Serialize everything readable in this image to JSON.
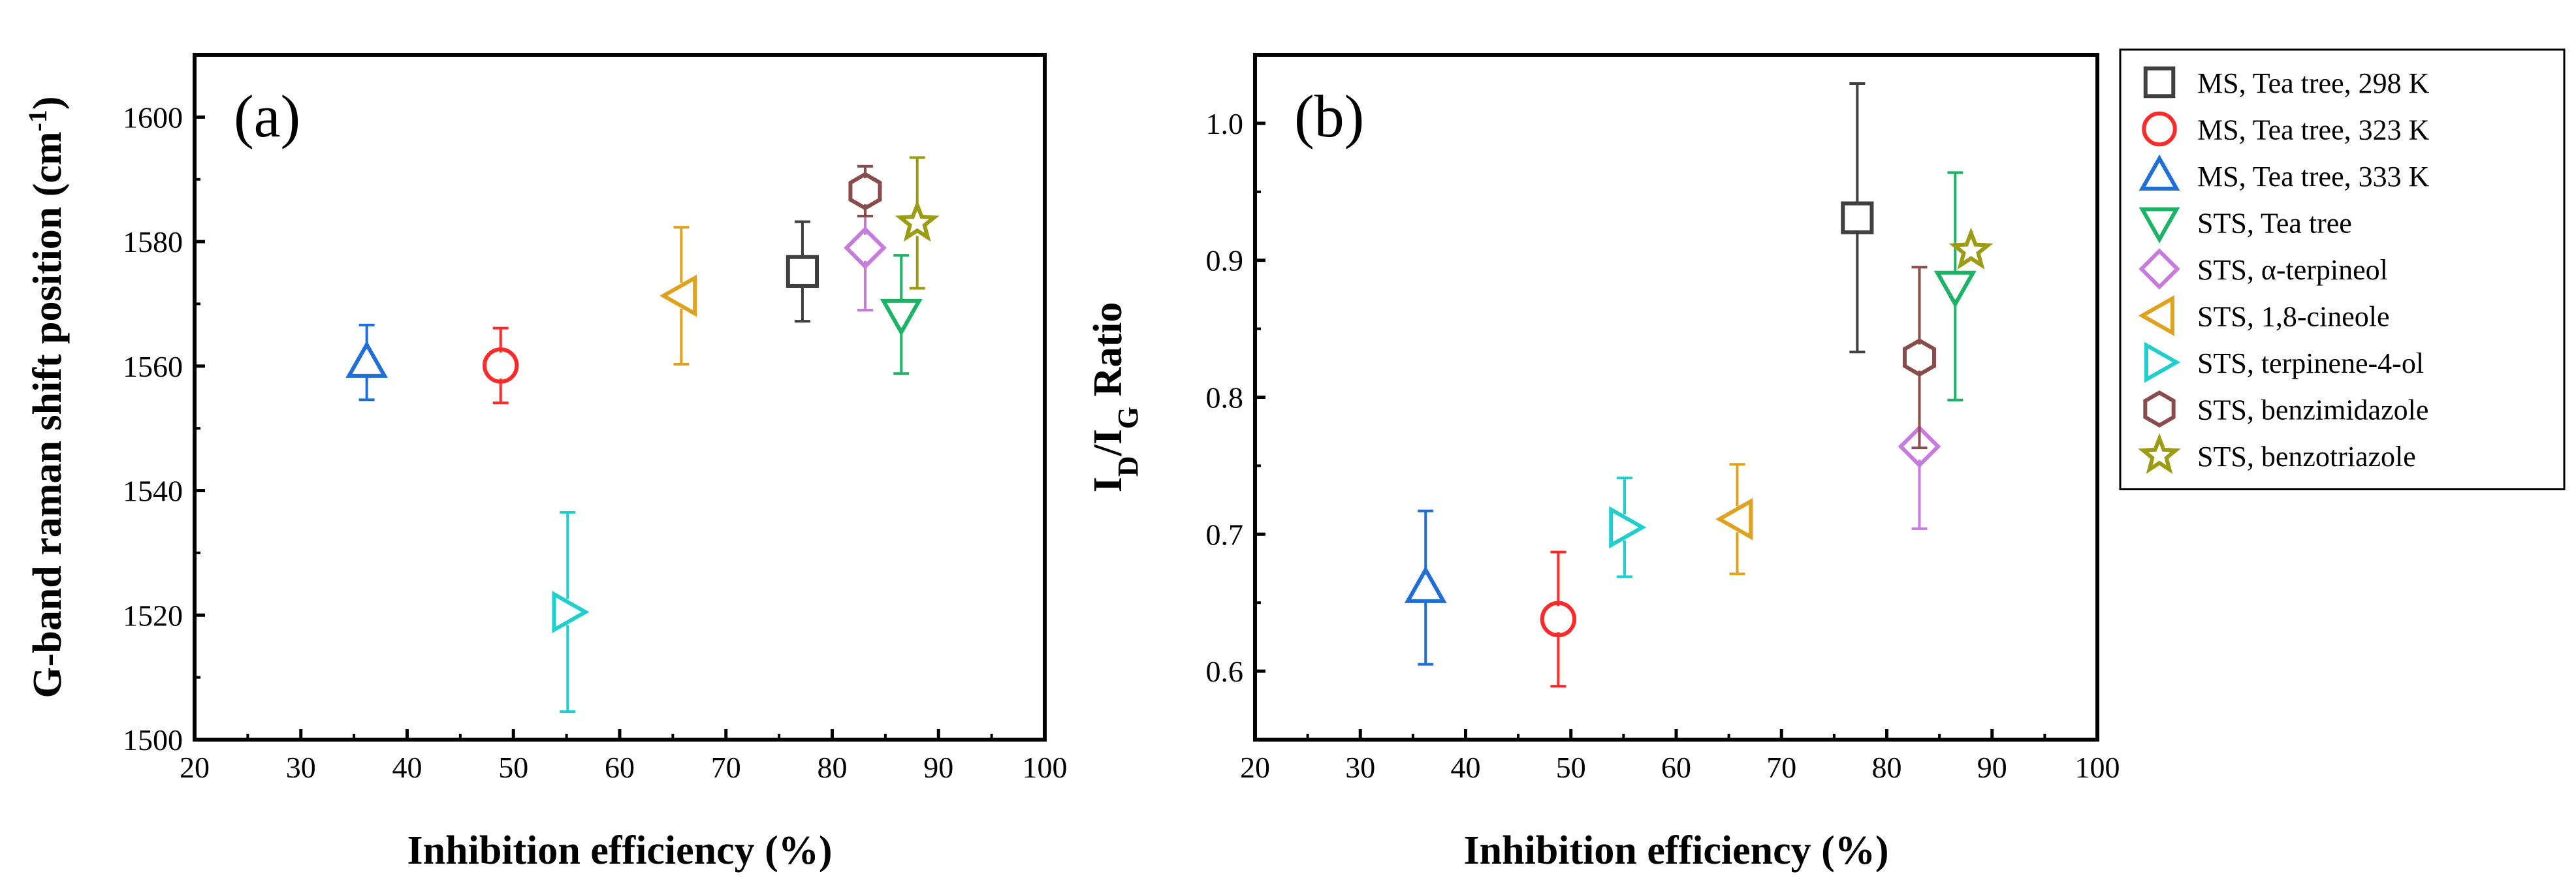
{
  "colors": {
    "MS, Tea tree, 298 K": "#3f3f3f",
    "MS, Tea tree, 323 K": "#ff2a2a",
    "MS, Tea tree, 333 K": "#1f6fd6",
    "STS, Tea tree": "#1bb366",
    "STS, α-terpineol": "#c77bdd",
    "STS, 1,8-cineole": "#e0a21c",
    "STS, terpinene-4-ol": "#1fcfcf",
    "STS, benzimidazole": "#8a4b4b",
    "STS, benzotriazole": "#9c9c12"
  },
  "markers": {
    "MS, Tea tree, 298 K": "square",
    "MS, Tea tree, 323 K": "circle",
    "MS, Tea tree, 333 K": "triangle-up",
    "STS, Tea tree": "triangle-down",
    "STS, α-terpineol": "diamond",
    "STS, 1,8-cineole": "triangle-left",
    "STS, terpinene-4-ol": "triangle-right",
    "STS, benzimidazole": "hexagon",
    "STS, benzotriazole": "star"
  },
  "legend": {
    "placement": "right",
    "entries": [
      "MS, Tea tree, 298 K",
      "MS, Tea tree, 323 K",
      "MS, Tea tree, 333 K",
      "STS, Tea tree",
      "STS, α-terpineol",
      "STS, 1,8-cineole",
      "STS, terpinene-4-ol",
      "STS, benzimidazole",
      "STS, benzotriazole"
    ]
  },
  "chart_data": [
    {
      "type": "scatter",
      "panel": "(a)",
      "xlabel": "Inhibition efficiency (%)",
      "ylabel": "G-band raman shift position (cm",
      "ylabel_sup": "-1",
      "ylabel_end": ")",
      "xlim": [
        20,
        100
      ],
      "ylim": [
        1500,
        1610
      ],
      "xticks": [
        20,
        30,
        40,
        50,
        60,
        70,
        80,
        90,
        100
      ],
      "yticks": [
        1500,
        1520,
        1540,
        1560,
        1580,
        1600
      ],
      "grid": false,
      "series": [
        {
          "name": "MS, Tea tree, 298 K",
          "x": 77.2,
          "y": 1575.2,
          "err": 8
        },
        {
          "name": "MS, Tea tree, 323 K",
          "x": 48.8,
          "y": 1560.1,
          "err": 6
        },
        {
          "name": "MS, Tea tree, 333 K",
          "x": 36.2,
          "y": 1560.6,
          "err": 6
        },
        {
          "name": "STS, Tea tree",
          "x": 86.5,
          "y": 1568.3,
          "err": 9.5
        },
        {
          "name": "STS, α-terpineol",
          "x": 83.1,
          "y": 1579.0,
          "err": 10
        },
        {
          "name": "STS, 1,8-cineole",
          "x": 65.8,
          "y": 1571.3,
          "err": 11
        },
        {
          "name": "STS, terpinene-4-ol",
          "x": 55.1,
          "y": 1520.5,
          "err": 16
        },
        {
          "name": "STS, benzimidazole",
          "x": 83.1,
          "y": 1588.1,
          "err": 4
        },
        {
          "name": "STS, benzotriazole",
          "x": 88.0,
          "y": 1583.0,
          "err": 10.5
        }
      ]
    },
    {
      "type": "scatter",
      "panel": "(b)",
      "xlabel": "Inhibition efficiency (%)",
      "ylabel_parts": [
        "I",
        "D",
        "/I",
        "G",
        " Ratio"
      ],
      "xlim": [
        20,
        100
      ],
      "ylim": [
        0.55,
        1.05
      ],
      "xticks": [
        20,
        30,
        40,
        50,
        60,
        70,
        80,
        90,
        100
      ],
      "yticks": [
        0.6,
        0.7,
        0.8,
        0.9,
        1.0
      ],
      "grid": false,
      "series": [
        {
          "name": "MS, Tea tree, 298 K",
          "x": 77.2,
          "y": 0.931,
          "err": 0.098
        },
        {
          "name": "MS, Tea tree, 323 K",
          "x": 48.8,
          "y": 0.638,
          "err": 0.049
        },
        {
          "name": "MS, Tea tree, 333 K",
          "x": 36.2,
          "y": 0.661,
          "err": 0.056
        },
        {
          "name": "STS, Tea tree",
          "x": 86.5,
          "y": 0.881,
          "err": 0.083
        },
        {
          "name": "STS, α-terpineol",
          "x": 83.1,
          "y": 0.764,
          "err": 0.06
        },
        {
          "name": "STS, 1,8-cineole",
          "x": 65.8,
          "y": 0.711,
          "err": 0.04
        },
        {
          "name": "STS, terpinene-4-ol",
          "x": 55.1,
          "y": 0.705,
          "err": 0.036
        },
        {
          "name": "STS, benzimidazole",
          "x": 83.1,
          "y": 0.829,
          "err": 0.066
        },
        {
          "name": "STS, benzotriazole",
          "x": 88.0,
          "y": 0.907,
          "err": 0.006
        }
      ]
    }
  ]
}
